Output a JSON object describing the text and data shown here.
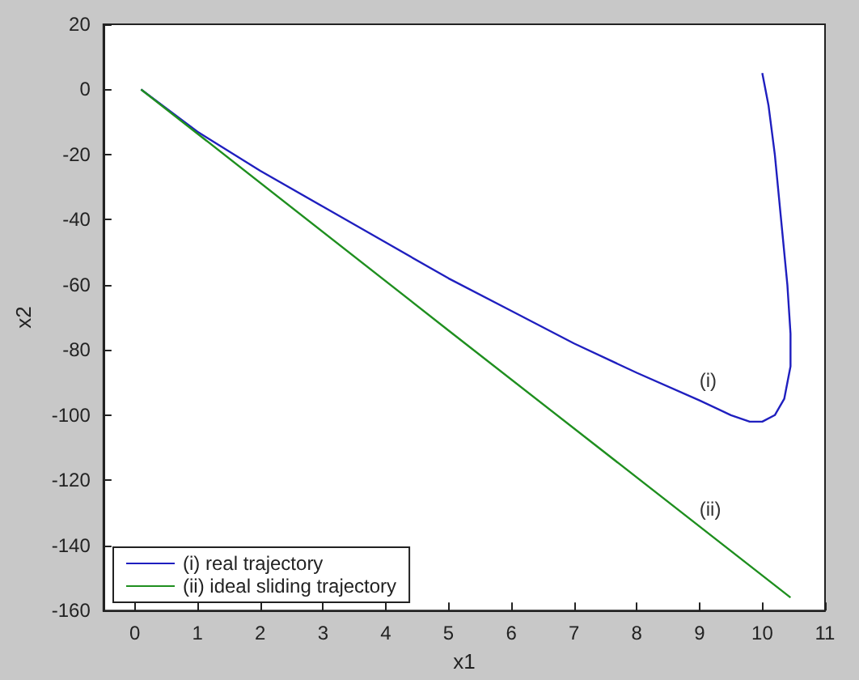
{
  "chart_data": {
    "type": "line",
    "xlabel": "x1",
    "ylabel": "x2",
    "xlim": [
      -0.5,
      11
    ],
    "xticks": [
      0,
      1,
      2,
      3,
      4,
      5,
      6,
      7,
      8,
      9,
      10,
      11
    ],
    "ylim": [
      -160,
      20
    ],
    "yticks": [
      -160,
      -140,
      -120,
      -100,
      -80,
      -60,
      -40,
      -20,
      0,
      20
    ],
    "grid": false,
    "legend": "bottom left",
    "marker": "none",
    "line_style": "solid",
    "series": [
      {
        "name": "(i) real trajectory",
        "color": "#1f1fbf",
        "x": [
          0.1,
          1,
          2,
          3,
          4,
          5,
          6,
          7,
          8,
          9,
          9.5,
          9.8,
          10,
          10.2,
          10.35,
          10.45,
          10.45,
          10.4,
          10.3,
          10.2,
          10.1,
          10
        ],
        "values": [
          0,
          -13,
          -25,
          -36,
          -47,
          -58,
          -68,
          -78,
          -87,
          -95.5,
          -100,
          -102,
          -102,
          -100,
          -95,
          -85,
          -75,
          -60,
          -40,
          -20,
          -5,
          5
        ]
      },
      {
        "name": "(ii) ideal sliding trajectory",
        "color": "#1f8f1f",
        "x": [
          0.1,
          5,
          10.45
        ],
        "values": [
          0,
          -74,
          -156
        ]
      }
    ],
    "annotations": [
      "(i)",
      "(ii)"
    ]
  }
}
